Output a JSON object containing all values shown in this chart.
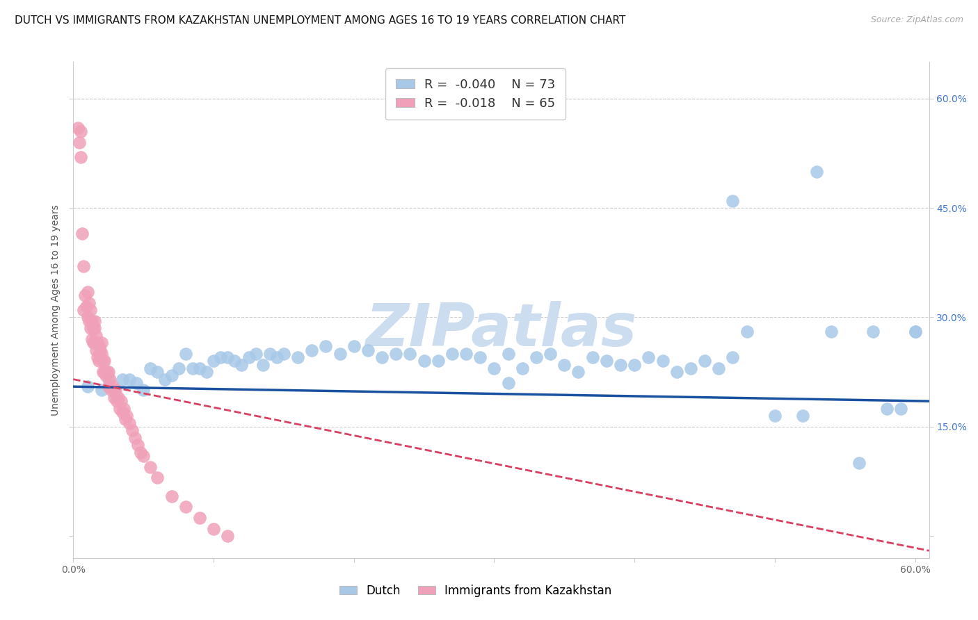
{
  "title": "DUTCH VS IMMIGRANTS FROM KAZAKHSTAN UNEMPLOYMENT AMONG AGES 16 TO 19 YEARS CORRELATION CHART",
  "source": "Source: ZipAtlas.com",
  "ylabel": "Unemployment Among Ages 16 to 19 years",
  "xlim": [
    0.0,
    0.61
  ],
  "ylim": [
    -0.03,
    0.65
  ],
  "yticks": [
    0.0,
    0.15,
    0.3,
    0.45,
    0.6
  ],
  "legend_r_dutch": "-0.040",
  "legend_n_dutch": "73",
  "legend_r_kaz": "-0.018",
  "legend_n_kaz": "65",
  "dutch_color": "#a8c8e8",
  "kaz_color": "#f0a0b8",
  "dutch_line_color": "#1a50a0",
  "kaz_line_color": "#d84060",
  "watermark": "ZIPatlas",
  "watermark_color": "#ccddf0",
  "background_color": "#ffffff",
  "grid_color": "#cccccc",
  "title_fontsize": 11,
  "source_fontsize": 9,
  "axis_label_fontsize": 10,
  "tick_fontsize": 10,
  "dutch_x": [
    0.01,
    0.02,
    0.025,
    0.03,
    0.035,
    0.04,
    0.045,
    0.05,
    0.055,
    0.06,
    0.065,
    0.07,
    0.075,
    0.08,
    0.085,
    0.09,
    0.095,
    0.1,
    0.105,
    0.11,
    0.115,
    0.12,
    0.125,
    0.13,
    0.135,
    0.14,
    0.145,
    0.15,
    0.16,
    0.17,
    0.18,
    0.19,
    0.2,
    0.21,
    0.22,
    0.23,
    0.24,
    0.25,
    0.26,
    0.27,
    0.28,
    0.29,
    0.3,
    0.31,
    0.32,
    0.33,
    0.34,
    0.35,
    0.36,
    0.37,
    0.38,
    0.39,
    0.4,
    0.41,
    0.42,
    0.43,
    0.44,
    0.45,
    0.46,
    0.47,
    0.48,
    0.5,
    0.52,
    0.54,
    0.56,
    0.57,
    0.58,
    0.59,
    0.6,
    0.6,
    0.53,
    0.47,
    0.31
  ],
  "dutch_y": [
    0.205,
    0.2,
    0.215,
    0.195,
    0.215,
    0.215,
    0.21,
    0.2,
    0.23,
    0.225,
    0.215,
    0.22,
    0.23,
    0.25,
    0.23,
    0.23,
    0.225,
    0.24,
    0.245,
    0.245,
    0.24,
    0.235,
    0.245,
    0.25,
    0.235,
    0.25,
    0.245,
    0.25,
    0.245,
    0.255,
    0.26,
    0.25,
    0.26,
    0.255,
    0.245,
    0.25,
    0.25,
    0.24,
    0.24,
    0.25,
    0.25,
    0.245,
    0.23,
    0.25,
    0.23,
    0.245,
    0.25,
    0.235,
    0.225,
    0.245,
    0.24,
    0.235,
    0.235,
    0.245,
    0.24,
    0.225,
    0.23,
    0.24,
    0.23,
    0.245,
    0.28,
    0.165,
    0.165,
    0.28,
    0.1,
    0.28,
    0.175,
    0.175,
    0.28,
    0.28,
    0.5,
    0.46,
    0.21
  ],
  "kaz_x": [
    0.003,
    0.004,
    0.005,
    0.005,
    0.006,
    0.007,
    0.007,
    0.008,
    0.009,
    0.01,
    0.01,
    0.011,
    0.011,
    0.012,
    0.012,
    0.013,
    0.013,
    0.014,
    0.014,
    0.015,
    0.015,
    0.015,
    0.016,
    0.016,
    0.017,
    0.017,
    0.018,
    0.018,
    0.019,
    0.02,
    0.02,
    0.021,
    0.021,
    0.022,
    0.022,
    0.023,
    0.024,
    0.025,
    0.025,
    0.026,
    0.027,
    0.028,
    0.029,
    0.03,
    0.031,
    0.032,
    0.033,
    0.034,
    0.035,
    0.036,
    0.037,
    0.038,
    0.04,
    0.042,
    0.044,
    0.046,
    0.048,
    0.05,
    0.055,
    0.06,
    0.07,
    0.08,
    0.09,
    0.1,
    0.11
  ],
  "kaz_y": [
    0.56,
    0.54,
    0.555,
    0.52,
    0.415,
    0.37,
    0.31,
    0.33,
    0.315,
    0.335,
    0.3,
    0.32,
    0.295,
    0.31,
    0.285,
    0.295,
    0.27,
    0.285,
    0.265,
    0.295,
    0.285,
    0.265,
    0.275,
    0.255,
    0.265,
    0.245,
    0.26,
    0.24,
    0.255,
    0.265,
    0.25,
    0.24,
    0.225,
    0.24,
    0.225,
    0.22,
    0.225,
    0.225,
    0.205,
    0.215,
    0.2,
    0.205,
    0.19,
    0.2,
    0.185,
    0.19,
    0.175,
    0.185,
    0.17,
    0.175,
    0.16,
    0.165,
    0.155,
    0.145,
    0.135,
    0.125,
    0.115,
    0.11,
    0.095,
    0.08,
    0.055,
    0.04,
    0.025,
    0.01,
    0.0
  ]
}
